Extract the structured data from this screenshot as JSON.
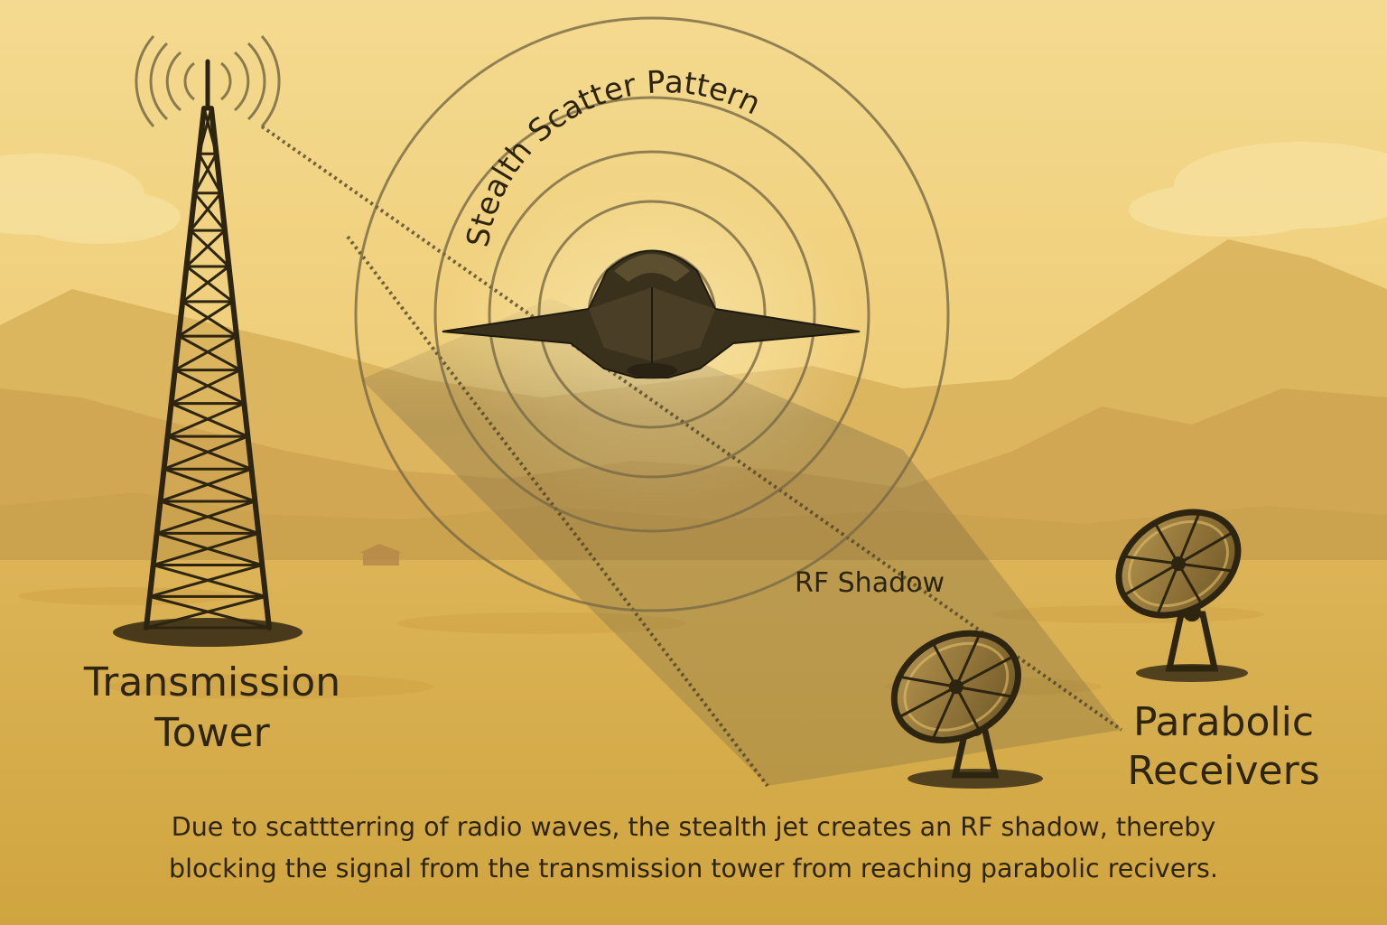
{
  "labels": {
    "scatter_pattern": "Stealth Scatter Pattern",
    "tower_line1": "Transmission",
    "tower_line2": "Tower",
    "receivers_line1": "Parabolic",
    "receivers_line2": "Receivers",
    "rf_shadow": "RF Shadow"
  },
  "caption": {
    "line1": "Due to scattterring of radio waves, the stealth jet creates an RF shadow, thereby",
    "line2": "blocking the signal from the transmission tower from reaching parabolic recivers."
  },
  "colors": {
    "sky_top": "#f3d98e",
    "sky_bottom": "#e9c46a",
    "ground": "#d8ad4a",
    "mountain": "#c9a048",
    "dark_ink": "#2e2510",
    "shadow_beam": "#8a7a55"
  },
  "icons": [
    "transmission-tower-icon",
    "stealth-jet-icon",
    "parabolic-dish-icon",
    "radio-wave-icon"
  ]
}
